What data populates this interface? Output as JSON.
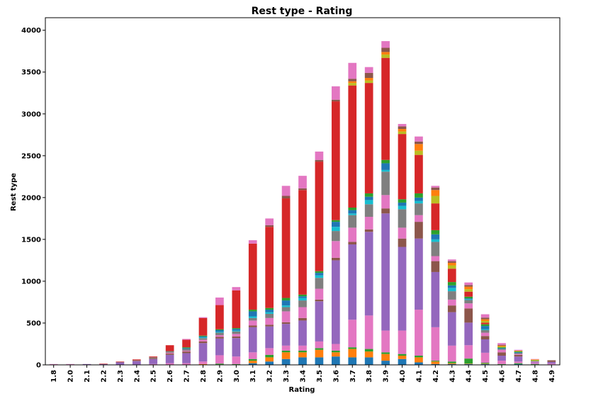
{
  "chart_data": {
    "type": "bar",
    "stacked": true,
    "title": "Rest type - Rating",
    "xlabel": "Rating",
    "ylabel": "Rest type",
    "ylim": [
      0,
      4150
    ],
    "yticks": [
      0,
      500,
      1000,
      1500,
      2000,
      2500,
      3000,
      3500,
      4000
    ],
    "grid": false,
    "legend": "none",
    "categories": [
      "1.8",
      "2.0",
      "2.1",
      "2.2",
      "2.3",
      "2.4",
      "2.5",
      "2.6",
      "2.7",
      "2.8",
      "2.9",
      "3.0",
      "3.1",
      "3.2",
      "3.3",
      "3.4",
      "3.5",
      "3.6",
      "3.7",
      "3.8",
      "3.9",
      "4.0",
      "4.1",
      "4.2",
      "4.3",
      "4.4",
      "4.5",
      "4.6",
      "4.7",
      "4.8",
      "4.9"
    ],
    "colors": [
      "#1f77b4",
      "#ff7f0e",
      "#2ca02c",
      "#d62728",
      "#9467bd",
      "#8c564b",
      "#e377c2",
      "#7f7f7f",
      "#bcbd22",
      "#17becf"
    ],
    "series": [
      {
        "color": "#1f77b4",
        "values": [
          0,
          0,
          0,
          0,
          0,
          0,
          0,
          0,
          0,
          0,
          0,
          0,
          20,
          40,
          70,
          90,
          90,
          100,
          90,
          90,
          50,
          70,
          30,
          10,
          10,
          10,
          10,
          5,
          10,
          5,
          5
        ]
      },
      {
        "color": "#ff7f0e",
        "values": [
          0,
          0,
          0,
          0,
          0,
          0,
          0,
          0,
          0,
          10,
          5,
          5,
          30,
          50,
          80,
          60,
          90,
          50,
          100,
          70,
          80,
          40,
          60,
          30,
          10,
          5,
          5,
          0,
          0,
          0,
          0
        ]
      },
      {
        "color": "#2ca02c",
        "values": [
          0,
          0,
          0,
          0,
          0,
          0,
          0,
          0,
          0,
          0,
          10,
          5,
          20,
          30,
          20,
          20,
          20,
          20,
          20,
          30,
          20,
          20,
          20,
          10,
          20,
          60,
          10,
          5,
          10,
          5,
          0
        ]
      },
      {
        "color": "#e377c2",
        "values": [
          0,
          0,
          0,
          0,
          0,
          5,
          10,
          20,
          20,
          30,
          100,
          90,
          80,
          80,
          60,
          60,
          80,
          80,
          330,
          400,
          260,
          280,
          550,
          400,
          190,
          160,
          120,
          40,
          20,
          10,
          10
        ]
      },
      {
        "color": "#9467bd",
        "values": [
          5,
          5,
          10,
          10,
          30,
          40,
          60,
          100,
          120,
          220,
          200,
          220,
          300,
          260,
          260,
          300,
          480,
          1000,
          900,
          1000,
          1400,
          1000,
          850,
          660,
          400,
          270,
          160,
          60,
          60,
          10,
          20
        ]
      },
      {
        "color": "#8c564b",
        "values": [
          0,
          0,
          0,
          0,
          5,
          5,
          10,
          15,
          20,
          20,
          20,
          20,
          20,
          20,
          20,
          30,
          20,
          30,
          30,
          30,
          60,
          100,
          200,
          130,
          80,
          170,
          40,
          40,
          20,
          0,
          20
        ]
      },
      {
        "color": "#e377c2",
        "values": [
          0,
          0,
          0,
          0,
          0,
          0,
          0,
          10,
          10,
          20,
          20,
          30,
          60,
          80,
          130,
          130,
          130,
          200,
          170,
          150,
          160,
          130,
          80,
          60,
          70,
          60,
          40,
          30,
          10,
          10,
          0
        ]
      },
      {
        "color": "#7f7f7f",
        "values": [
          0,
          0,
          0,
          0,
          0,
          5,
          10,
          20,
          20,
          20,
          30,
          30,
          30,
          50,
          50,
          80,
          130,
          120,
          150,
          150,
          280,
          220,
          140,
          170,
          100,
          40,
          30,
          10,
          10,
          5,
          0
        ]
      },
      {
        "color": "#17becf",
        "values": [
          0,
          0,
          0,
          0,
          0,
          0,
          0,
          0,
          0,
          10,
          10,
          10,
          20,
          20,
          20,
          30,
          30,
          50,
          20,
          50,
          20,
          40,
          30,
          30,
          40,
          10,
          10,
          0,
          0,
          0,
          0
        ]
      },
      {
        "color": "#1f77b4",
        "values": [
          0,
          0,
          0,
          0,
          0,
          0,
          0,
          0,
          10,
          10,
          20,
          20,
          60,
          30,
          60,
          20,
          30,
          60,
          40,
          40,
          80,
          40,
          40,
          60,
          30,
          10,
          40,
          10,
          10,
          0,
          0
        ]
      },
      {
        "color": "#2ca02c",
        "values": [
          0,
          0,
          0,
          0,
          0,
          0,
          0,
          0,
          10,
          10,
          10,
          10,
          20,
          20,
          30,
          20,
          20,
          20,
          30,
          40,
          40,
          40,
          50,
          50,
          40,
          20,
          20,
          10,
          10,
          5,
          0
        ]
      },
      {
        "color": "#d62728",
        "values": [
          0,
          0,
          0,
          5,
          5,
          10,
          10,
          70,
          90,
          210,
          290,
          450,
          790,
          970,
          1190,
          1250,
          1310,
          1420,
          1460,
          1320,
          1220,
          780,
          460,
          320,
          160,
          60,
          20,
          0,
          0,
          0,
          0
        ]
      },
      {
        "color": "#bcbd22",
        "values": [
          0,
          0,
          0,
          0,
          0,
          0,
          0,
          0,
          0,
          0,
          0,
          0,
          0,
          0,
          0,
          0,
          0,
          0,
          30,
          30,
          40,
          30,
          50,
          90,
          40,
          30,
          20,
          10,
          5,
          10,
          0
        ]
      },
      {
        "color": "#ff7f0e",
        "values": [
          0,
          0,
          0,
          0,
          0,
          0,
          0,
          0,
          0,
          0,
          0,
          0,
          0,
          0,
          0,
          0,
          0,
          0,
          20,
          30,
          30,
          30,
          80,
          70,
          30,
          30,
          20,
          10,
          5,
          5,
          0
        ]
      },
      {
        "color": "#8c564b",
        "values": [
          0,
          0,
          0,
          0,
          0,
          0,
          0,
          0,
          0,
          0,
          0,
          0,
          0,
          20,
          30,
          20,
          20,
          20,
          30,
          60,
          50,
          30,
          30,
          30,
          20,
          20,
          20,
          10,
          0,
          0,
          0
        ]
      },
      {
        "color": "#e377c2",
        "values": [
          5,
          5,
          0,
          0,
          0,
          0,
          0,
          0,
          10,
          10,
          90,
          40,
          40,
          80,
          120,
          150,
          100,
          160,
          190,
          70,
          80,
          30,
          60,
          20,
          20,
          30,
          40,
          20,
          10,
          5,
          0
        ]
      }
    ]
  }
}
